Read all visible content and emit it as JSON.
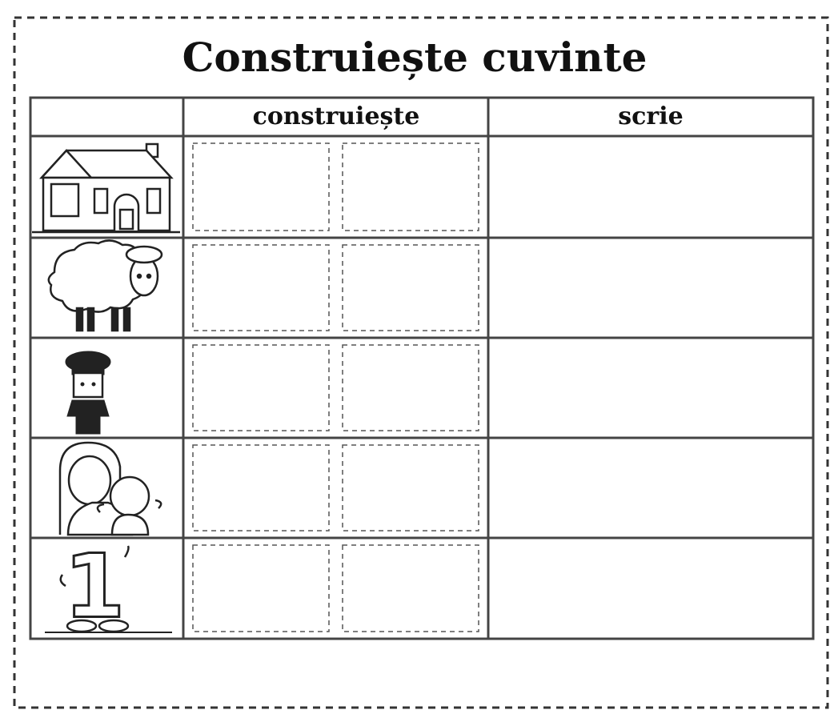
{
  "header": {
    "title": "Construiește cuvinte"
  },
  "table": {
    "columns": [
      "construiește",
      "scrie"
    ]
  },
  "illustrations": {
    "number_figure": "1"
  }
}
